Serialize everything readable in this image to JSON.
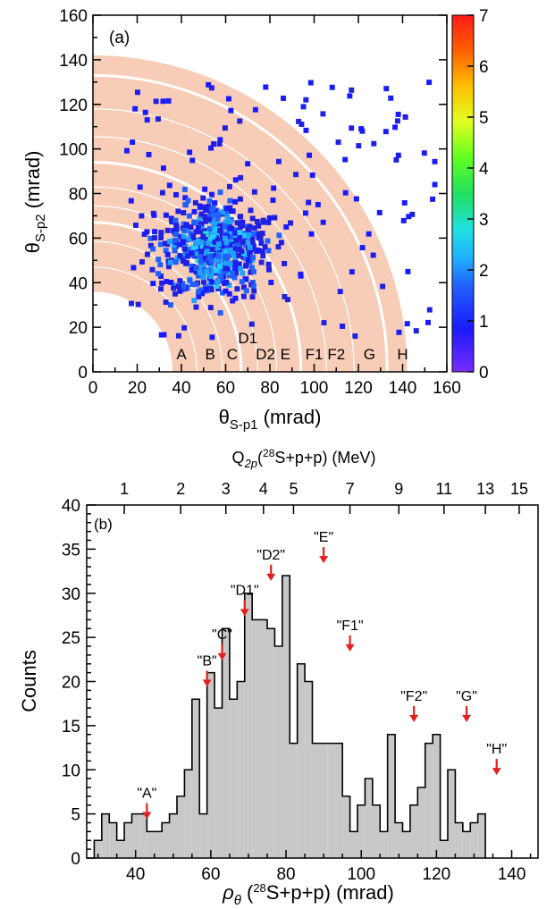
{
  "panel_a": {
    "panel_label": "(a)",
    "xlabel_main": "θ",
    "xlabel_sub": "S-p1",
    "xlabel_unit": " (mrad)",
    "ylabel_main": "θ",
    "ylabel_sub": "S-p2",
    "ylabel_unit": " (mrad)",
    "xticks": [
      "0",
      "20",
      "40",
      "60",
      "80",
      "100",
      "120",
      "140",
      "160"
    ],
    "yticks": [
      "0",
      "20",
      "40",
      "60",
      "80",
      "100",
      "120",
      "140",
      "160"
    ],
    "colorbar_ticks": [
      "0",
      "1",
      "2",
      "3",
      "4",
      "5",
      "6",
      "7"
    ],
    "band_color": "#f7cdb8",
    "ring_labels": [
      "A",
      "B",
      "C",
      "D1",
      "D2",
      "E",
      "F1",
      "F2",
      "G",
      "H"
    ]
  },
  "panel_b": {
    "panel_label": "(b)",
    "ylabel": "Counts",
    "xlabel_rho": "ρ",
    "xlabel_theta": "θ",
    "xlabel_rest": " (",
    "xlabel_mass": "28",
    "xlabel_tail": "S+p+p) (mrad)",
    "top_label_q": "Q",
    "top_label_sub": "2p",
    "top_label_paren": "(",
    "top_label_mass": "28",
    "top_label_tail": "S+p+p) (MeV)",
    "xticks": [
      "40",
      "60",
      "80",
      "100",
      "120",
      "140"
    ],
    "yticks": [
      "0",
      "5",
      "10",
      "15",
      "20",
      "25",
      "30",
      "35",
      "40"
    ],
    "top_ticks": [
      "1",
      "2",
      "3",
      "4",
      "5",
      "7",
      "9",
      "11",
      "13",
      "15"
    ],
    "bar_color": "#c8c8c8",
    "arrow_color": "#e02020",
    "markers": [
      "\"A\"",
      "\"B\"",
      "\"C\"",
      "\"D1\"",
      "\"D2\"",
      "\"E\"",
      "\"F1\"",
      "\"F2\"",
      "\"G\"",
      "\"H\""
    ]
  },
  "chart_data": [
    {
      "type": "heatmap",
      "title": "(a)",
      "xlabel": "θS-p1 (mrad)",
      "ylabel": "θS-p2 (mrad)",
      "xlim": [
        0,
        160
      ],
      "ylim": [
        0,
        160
      ],
      "colorbar_range": [
        0,
        7
      ],
      "ring_radii": [
        40,
        53,
        63,
        70,
        78,
        87,
        100,
        110,
        125,
        140
      ],
      "ring_labels": [
        "A",
        "B",
        "C",
        "D1",
        "D2",
        "E",
        "F1",
        "F2",
        "G",
        "H"
      ],
      "cluster_center": [
        55,
        55
      ]
    },
    {
      "type": "bar",
      "title": "(b)",
      "xlabel": "ρθ (28S+p+p) (mrad)",
      "ylabel": "Counts",
      "xlim": [
        27,
        147
      ],
      "ylim": [
        0,
        40
      ],
      "bin_width": 2,
      "bin_start": 29,
      "values": [
        2,
        5,
        4,
        2,
        4,
        5,
        5,
        3,
        3,
        4,
        5,
        7,
        10,
        18,
        5,
        21,
        17,
        26,
        18,
        20,
        30,
        27,
        27,
        26,
        24,
        32,
        13,
        22,
        20,
        13,
        13,
        13,
        13,
        7,
        3,
        6,
        9,
        6,
        3,
        14,
        4,
        3,
        6,
        8,
        13,
        14,
        2,
        10,
        4,
        3,
        4,
        5
      ],
      "markers": [
        {
          "label": "\"A\"",
          "x": 43,
          "count": 4
        },
        {
          "label": "\"B\"",
          "x": 59,
          "count": 19
        },
        {
          "label": "\"C\"",
          "x": 63,
          "count": 22
        },
        {
          "label": "\"D1\"",
          "x": 69,
          "count": 27
        },
        {
          "label": "\"D2\"",
          "x": 76,
          "count": 31
        },
        {
          "label": "\"E\"",
          "x": 90,
          "count": 33
        },
        {
          "label": "\"F1\"",
          "x": 97,
          "count": 23
        },
        {
          "label": "\"F2\"",
          "x": 114,
          "count": 15
        },
        {
          "label": "\"G\"",
          "x": 128,
          "count": 15
        },
        {
          "label": "\"H\"",
          "x": 136,
          "count": 9
        }
      ],
      "top_axis_label": "Q2p(28S+p+p) (MeV)",
      "top_axis_ticks": [
        {
          "label": "1",
          "rho": 37
        },
        {
          "label": "2",
          "rho": 52
        },
        {
          "label": "3",
          "rho": 64
        },
        {
          "label": "4",
          "rho": 74
        },
        {
          "label": "5",
          "rho": 82
        },
        {
          "label": "7",
          "rho": 97
        },
        {
          "label": "9",
          "rho": 110
        },
        {
          "label": "11",
          "rho": 122
        },
        {
          "label": "13",
          "rho": 133
        },
        {
          "label": "15",
          "rho": 142
        }
      ]
    }
  ]
}
